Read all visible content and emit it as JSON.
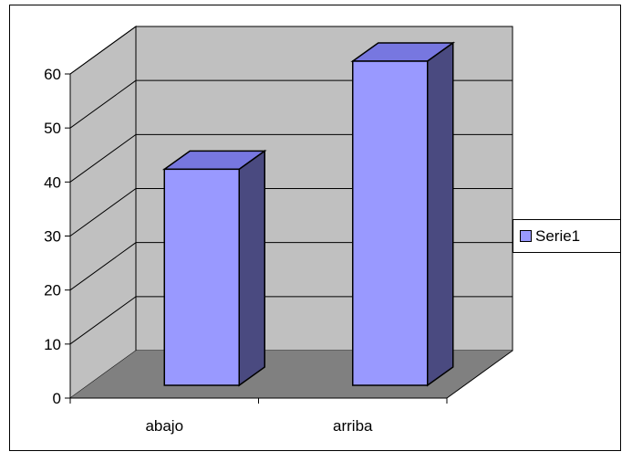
{
  "chart_data": {
    "type": "bar",
    "title": "",
    "xlabel": "",
    "ylabel": "",
    "categories": [
      "abajo",
      "arriba"
    ],
    "series": [
      {
        "name": "Serie1",
        "values": [
          40,
          60
        ]
      }
    ],
    "ylim": [
      0,
      60
    ],
    "yticks": [
      0,
      10,
      20,
      30,
      40,
      50,
      60
    ],
    "grid": true,
    "legend": "right",
    "three_d": true,
    "colors": {
      "bar_front": "#9999ff",
      "bar_top": "#7777e0",
      "bar_side": "#4a4a80",
      "wall": "#c0c0c0",
      "floor": "#808080",
      "border": "#000000",
      "background": "#ffffff"
    }
  }
}
